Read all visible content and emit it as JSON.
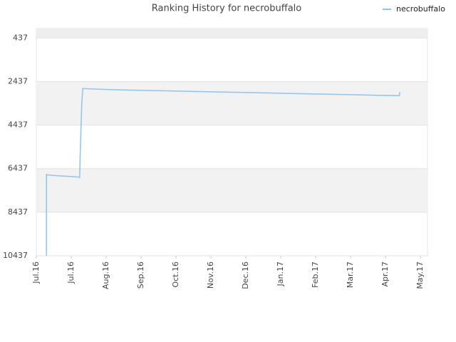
{
  "chart_data": {
    "type": "line",
    "title": "Ranking History for necrobuffalo",
    "xlim": [
      0,
      11.2
    ],
    "xticks": [
      {
        "value": 0,
        "label": "Jul.16"
      },
      {
        "value": 1,
        "label": "Jul.16"
      },
      {
        "value": 2,
        "label": "Aug.16"
      },
      {
        "value": 3,
        "label": "Sep.16"
      },
      {
        "value": 4,
        "label": "Oct.16"
      },
      {
        "value": 5,
        "label": "Nov.16"
      },
      {
        "value": 6,
        "label": "Dec.16"
      },
      {
        "value": 7,
        "label": "Jan.17"
      },
      {
        "value": 8,
        "label": "Feb.17"
      },
      {
        "value": 9,
        "label": "Mar.17"
      },
      {
        "value": 10,
        "label": "Apr.17"
      },
      {
        "value": 11,
        "label": "May.17"
      }
    ],
    "ylim": [
      10437,
      0
    ],
    "yticks": [
      437,
      2437,
      4437,
      6437,
      8437,
      10437
    ],
    "grid": true,
    "legend": "top-right",
    "series": [
      {
        "name": "necrobuffalo",
        "color": "#8ec4f0",
        "x": [
          0.29,
          0.29,
          0.31,
          0.6,
          0.9,
          1.2,
          1.24,
          1.26,
          1.3,
          1.33,
          1.8,
          2.7,
          3.6,
          4.5,
          5.4,
          6.3,
          7.2,
          8.1,
          9.0,
          9.9,
          10.39,
          10.41
        ],
        "values": [
          10437,
          6700,
          6720,
          6760,
          6790,
          6820,
          6843,
          5500,
          3500,
          2757,
          2790,
          2830,
          2860,
          2890,
          2920,
          2950,
          2980,
          3010,
          3040,
          3070,
          3084,
          2920
        ]
      }
    ]
  }
}
